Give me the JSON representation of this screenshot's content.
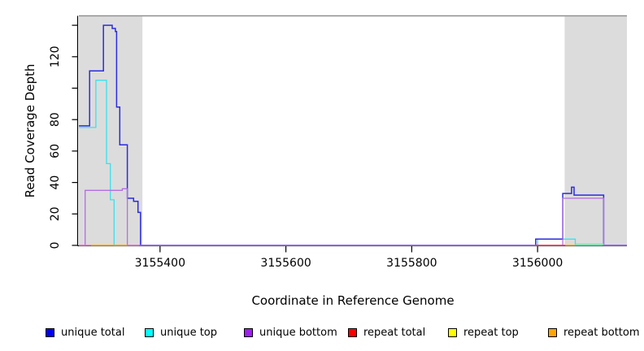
{
  "figure": {
    "background": "#FFFFFF"
  },
  "chart_data": {
    "type": "line",
    "subtype": "step",
    "title": "",
    "xlabel": "Coordinate in Reference Genome",
    "ylabel": "Read Coverage Depth",
    "xlim": [
      3155271,
      3156142
    ],
    "ylim": [
      0,
      146
    ],
    "x_ticks": [
      3155400,
      3155600,
      3155800,
      3156000
    ],
    "x_tick_labels": [
      "3155400",
      "3155600",
      "3155800",
      "3156000"
    ],
    "y_ticks": [
      0,
      20,
      40,
      60,
      80,
      100,
      120,
      140
    ],
    "y_tick_labels": [
      "0",
      "20",
      "40",
      "60",
      "80",
      "",
      "120",
      ""
    ],
    "grid": false,
    "legend_position": "bottom",
    "axis_color": "#000000",
    "shaded_regions": [
      {
        "x": [
          3155271,
          3155372
        ],
        "color": "#DCDCDC"
      },
      {
        "x": [
          3156043,
          3156142
        ],
        "color": "#DCDCDC"
      }
    ],
    "top_reference_line": {
      "color": "#8F8F8F"
    },
    "series": [
      {
        "name": "unique top",
        "color": "#35E3EE",
        "points": [
          [
            3155271,
            75
          ],
          [
            3155298,
            105
          ],
          [
            3155315,
            52
          ],
          [
            3155321,
            29
          ],
          [
            3155327,
            0
          ],
          [
            3156000,
            4
          ],
          [
            3156060,
            0
          ],
          [
            3156142,
            0
          ]
        ]
      },
      {
        "name": "unique total",
        "color": "#2B2BDE",
        "points": [
          [
            3155271,
            76
          ],
          [
            3155288,
            111
          ],
          [
            3155310,
            140
          ],
          [
            3155324,
            138
          ],
          [
            3155329,
            136
          ],
          [
            3155331,
            88
          ],
          [
            3155336,
            64
          ],
          [
            3155348,
            30
          ],
          [
            3155358,
            28
          ],
          [
            3155365,
            21
          ],
          [
            3155369,
            0
          ],
          [
            3155997,
            4
          ],
          [
            3156040,
            33
          ],
          [
            3156054,
            37
          ],
          [
            3156058,
            32
          ],
          [
            3156105,
            0
          ],
          [
            3156142,
            0
          ]
        ]
      },
      {
        "name": "unique bottom",
        "color": "#B36EE3",
        "points": [
          [
            3155271,
            0
          ],
          [
            3155281,
            35
          ],
          [
            3155340,
            36
          ],
          [
            3155348,
            0
          ],
          [
            3156040,
            30
          ],
          [
            3156105,
            0
          ],
          [
            3156142,
            0
          ]
        ]
      },
      {
        "name": "repeat total",
        "color": "#FF0000",
        "zero_coverage": true,
        "points": [
          [
            3155271,
            0
          ],
          [
            3156142,
            0
          ]
        ]
      },
      {
        "name": "repeat top",
        "color": "#FFFF00",
        "zero_coverage": true,
        "points": [
          [
            3155271,
            0
          ],
          [
            3156142,
            0
          ]
        ]
      },
      {
        "name": "repeat bottom",
        "color": "#FFA500",
        "zero_coverage": true,
        "points": [
          [
            3155271,
            0
          ],
          [
            3156142,
            0
          ]
        ]
      }
    ],
    "baseline_segments": [
      {
        "x": [
          3155271,
          3155290
        ],
        "color": "#EE6FBE",
        "raised": false
      },
      {
        "x": [
          3155290,
          3155348
        ],
        "color": "#FFA500",
        "raised": false
      },
      {
        "x": [
          3155348,
          3155367
        ],
        "color": "#EE6FBE",
        "raised": false
      },
      {
        "x": [
          3155997,
          3156044
        ],
        "color": "#E8415C",
        "raised": false
      },
      {
        "x": [
          3156044,
          3156060
        ],
        "color": "#FFA500",
        "raised": false
      },
      {
        "x": [
          3156060,
          3156105
        ],
        "color": "#98DE98",
        "raised": true
      }
    ]
  },
  "legend": {
    "items": [
      {
        "label": "unique total",
        "color": "#0000F0"
      },
      {
        "label": "unique top",
        "color": "#00FFFF"
      },
      {
        "label": "unique bottom",
        "color": "#A020F0"
      },
      {
        "label": "repeat total",
        "color": "#FF0000"
      },
      {
        "label": "repeat top",
        "color": "#FFFF00"
      },
      {
        "label": "repeat bottom",
        "color": "#FFA500"
      }
    ]
  }
}
